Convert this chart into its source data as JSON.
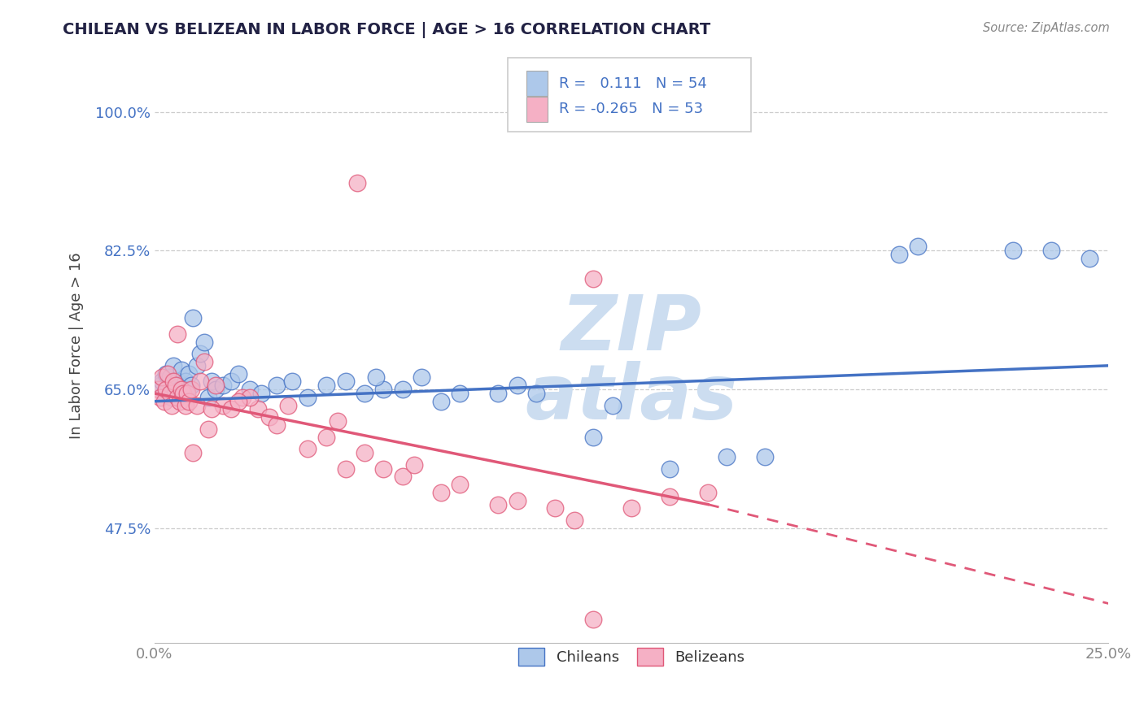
{
  "title": "CHILEAN VS BELIZEAN IN LABOR FORCE | AGE > 16 CORRELATION CHART",
  "source_text": "Source: ZipAtlas.com",
  "ylabel": "In Labor Force | Age > 16",
  "xlim": [
    0.0,
    25.0
  ],
  "ylim": [
    33.0,
    108.0
  ],
  "yticks": [
    47.5,
    65.0,
    82.5,
    100.0
  ],
  "xticks": [
    0.0,
    25.0
  ],
  "xticklabels": [
    "0.0%",
    "25.0%"
  ],
  "yticklabels": [
    "47.5%",
    "65.0%",
    "82.5%",
    "100.0%"
  ],
  "chilean_R": "0.111",
  "chilean_N": "54",
  "belizean_R": "-0.265",
  "belizean_N": "53",
  "chilean_face_color": "#adc8ea",
  "belizean_face_color": "#f5b0c5",
  "chilean_edge_color": "#4472c4",
  "belizean_edge_color": "#e05878",
  "chilean_line_color": "#4472c4",
  "belizean_line_color": "#e05878",
  "watermark_color": "#ccddf0",
  "tick_color_y": "#4472c4",
  "tick_color_x": "#888888",
  "grid_color": "#cccccc",
  "title_color": "#222244",
  "source_color": "#888888",
  "legend_text_color": "#4472c4",
  "legend_border_color": "#cccccc",
  "chilean_x": [
    0.15,
    0.2,
    0.25,
    0.3,
    0.35,
    0.4,
    0.45,
    0.5,
    0.55,
    0.6,
    0.65,
    0.7,
    0.75,
    0.8,
    0.85,
    0.9,
    0.95,
    1.0,
    1.1,
    1.2,
    1.3,
    1.4,
    1.5,
    1.6,
    1.8,
    2.0,
    2.2,
    2.5,
    2.8,
    3.2,
    3.6,
    4.0,
    4.5,
    5.0,
    5.5,
    6.5,
    7.0,
    8.0,
    9.5,
    10.0,
    11.5,
    13.5,
    16.0,
    19.5,
    22.5,
    24.5,
    7.5,
    9.0,
    12.0,
    15.0,
    20.0,
    23.5,
    6.0,
    5.8
  ],
  "chilean_y": [
    65.5,
    66.0,
    64.5,
    67.0,
    65.0,
    66.5,
    64.0,
    68.0,
    65.5,
    66.0,
    65.0,
    67.5,
    64.5,
    66.0,
    65.0,
    67.0,
    65.5,
    74.0,
    68.0,
    69.5,
    71.0,
    64.0,
    66.0,
    65.0,
    65.5,
    66.0,
    67.0,
    65.0,
    64.5,
    65.5,
    66.0,
    64.0,
    65.5,
    66.0,
    64.5,
    65.0,
    66.5,
    64.5,
    65.5,
    64.5,
    59.0,
    55.0,
    56.5,
    82.0,
    82.5,
    81.5,
    63.5,
    64.5,
    63.0,
    56.5,
    83.0,
    82.5,
    65.0,
    66.5
  ],
  "belizean_x": [
    0.1,
    0.15,
    0.2,
    0.25,
    0.3,
    0.35,
    0.4,
    0.45,
    0.5,
    0.55,
    0.6,
    0.65,
    0.7,
    0.75,
    0.8,
    0.85,
    0.9,
    0.95,
    1.0,
    1.1,
    1.2,
    1.4,
    1.6,
    1.8,
    2.0,
    2.3,
    2.7,
    3.0,
    3.5,
    4.0,
    4.5,
    5.0,
    6.0,
    7.5,
    9.0,
    11.0,
    13.5,
    14.5,
    5.5,
    6.5,
    8.0,
    10.5,
    2.5,
    1.5,
    0.6,
    1.3,
    2.2,
    3.2,
    4.8,
    6.8,
    9.5,
    12.5,
    11.5
  ],
  "belizean_y": [
    65.0,
    64.0,
    66.5,
    63.5,
    65.0,
    67.0,
    64.5,
    63.0,
    66.0,
    65.5,
    64.0,
    63.5,
    65.0,
    64.5,
    63.0,
    64.5,
    63.5,
    65.0,
    57.0,
    63.0,
    66.0,
    60.0,
    65.5,
    63.0,
    62.5,
    64.0,
    62.5,
    61.5,
    63.0,
    57.5,
    59.0,
    55.0,
    55.0,
    52.0,
    50.5,
    48.5,
    51.5,
    52.0,
    57.0,
    54.0,
    53.0,
    50.0,
    64.0,
    62.5,
    72.0,
    68.5,
    63.5,
    60.5,
    61.0,
    55.5,
    51.0,
    50.0,
    79.0
  ],
  "belizean_outlier_high_x": [
    5.3
  ],
  "belizean_outlier_high_y": [
    91.0
  ],
  "belizean_outlier_low_x": [
    11.5
  ],
  "belizean_outlier_low_y": [
    36.0
  ],
  "chilean_line_x0": 0.0,
  "chilean_line_y0": 63.5,
  "chilean_line_x1": 25.0,
  "chilean_line_y1": 68.0,
  "belizean_solid_x0": 0.0,
  "belizean_solid_y0": 64.5,
  "belizean_solid_x1": 14.5,
  "belizean_solid_y1": 50.5,
  "belizean_dash_x0": 14.5,
  "belizean_dash_y0": 50.5,
  "belizean_dash_x1": 25.0,
  "belizean_dash_y1": 38.0
}
